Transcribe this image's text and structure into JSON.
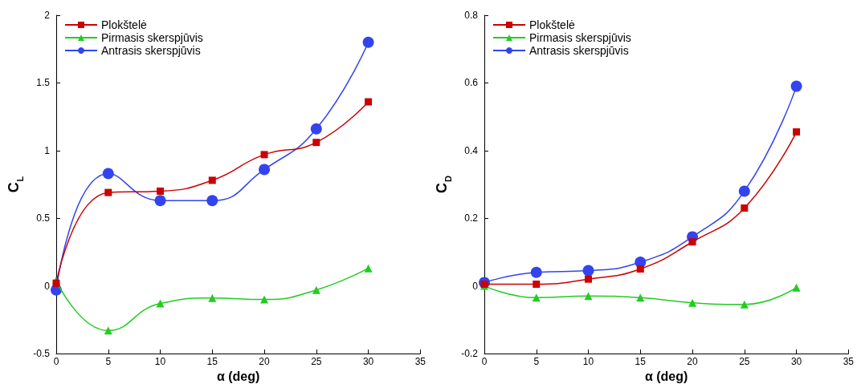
{
  "chart_data": [
    {
      "type": "line",
      "xlabel": "α (deg)",
      "ylabel": "C$_{L}$",
      "x": [
        0,
        5,
        10,
        15,
        20,
        25,
        30
      ],
      "xlim": [
        0,
        35
      ],
      "xticks": [
        0,
        5,
        10,
        15,
        20,
        25,
        30,
        35
      ],
      "ylim": [
        -0.5,
        2
      ],
      "yticks": [
        -0.5,
        0,
        0.5,
        1,
        1.5,
        2
      ],
      "legend": "top left",
      "grid": false,
      "series": [
        {
          "name": "Plokštelė",
          "color": "#cc0000",
          "marker": "square",
          "values": [
            0.02,
            0.69,
            0.7,
            0.78,
            0.97,
            1.06,
            1.36
          ]
        },
        {
          "name": "Pirmasis skerspjūvis",
          "color": "#22cc22",
          "marker": "triangle",
          "values": [
            0.04,
            -0.33,
            -0.13,
            -0.09,
            -0.1,
            -0.03,
            0.13
          ]
        },
        {
          "name": "Antrasis skerspjūvis",
          "color": "#3344ee",
          "marker": "circle",
          "values": [
            -0.03,
            0.83,
            0.63,
            0.63,
            0.86,
            1.16,
            1.8
          ]
        }
      ]
    },
    {
      "type": "line",
      "xlabel": "α (deg)",
      "ylabel": "C$_{D}$",
      "x": [
        0,
        5,
        10,
        15,
        20,
        25,
        30
      ],
      "xlim": [
        0,
        35
      ],
      "xticks": [
        0,
        5,
        10,
        15,
        20,
        25,
        30,
        35
      ],
      "ylim": [
        -0.2,
        0.8
      ],
      "yticks": [
        -0.2,
        0,
        0.2,
        0.4,
        0.6,
        0.8
      ],
      "legend": "top left",
      "grid": false,
      "series": [
        {
          "name": "Plokštelė",
          "color": "#cc0000",
          "marker": "square",
          "values": [
            0.005,
            0.005,
            0.02,
            0.05,
            0.13,
            0.23,
            0.455
          ]
        },
        {
          "name": "Pirmasis skerspjūvis",
          "color": "#22cc22",
          "marker": "triangle",
          "values": [
            0,
            -0.035,
            -0.03,
            -0.035,
            -0.05,
            -0.055,
            -0.005
          ]
        },
        {
          "name": "Antrasis skerspjūvis",
          "color": "#3344ee",
          "marker": "circle",
          "values": [
            0.01,
            0.04,
            0.045,
            0.07,
            0.145,
            0.28,
            0.59
          ]
        }
      ]
    }
  ]
}
